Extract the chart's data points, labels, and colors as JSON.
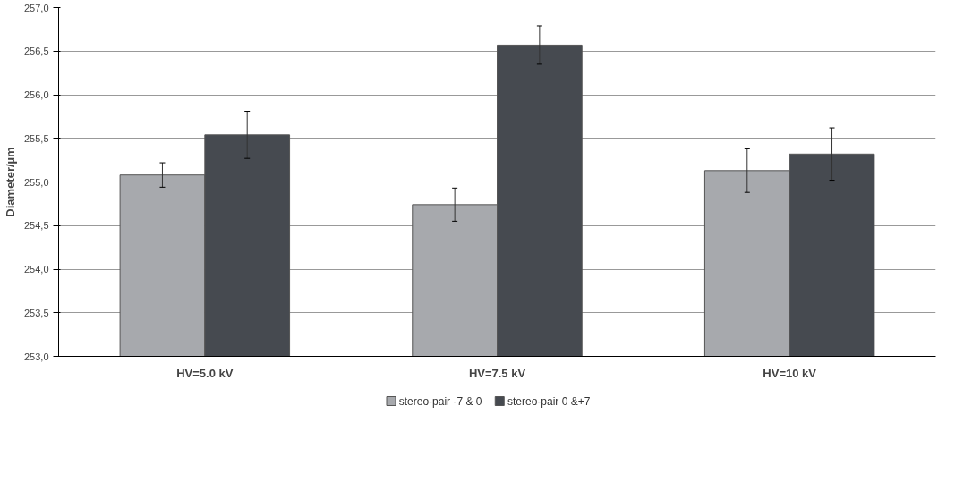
{
  "chart_data": {
    "type": "bar",
    "ylabel": "Diameter/µm",
    "categories": [
      "HV=5.0 kV",
      "HV=7.5 kV",
      "HV=10 kV"
    ],
    "series": [
      {
        "name": "stereo-pair -7 & 0",
        "color": "#a7a9ad",
        "values": [
          255.08,
          254.74,
          255.13
        ],
        "errors": [
          0.14,
          0.19,
          0.25
        ]
      },
      {
        "name": "stereo-pair 0 &+7",
        "color": "#464a50",
        "values": [
          255.54,
          256.57,
          255.32
        ],
        "errors": [
          0.27,
          0.22,
          0.3
        ]
      }
    ],
    "ylim": [
      253,
      257
    ],
    "yticks": [
      {
        "value": 253,
        "label": "253,0"
      },
      {
        "value": 253.5,
        "label": "253,5"
      },
      {
        "value": 254,
        "label": "254,0"
      },
      {
        "value": 254.5,
        "label": "254,5"
      },
      {
        "value": 255,
        "label": "255,0"
      },
      {
        "value": 255.5,
        "label": "255,5"
      },
      {
        "value": 256,
        "label": "256,0"
      },
      {
        "value": 256.5,
        "label": "256,5"
      },
      {
        "value": 257,
        "label": "257,0"
      }
    ],
    "grid": "y",
    "legend": "bottom"
  }
}
